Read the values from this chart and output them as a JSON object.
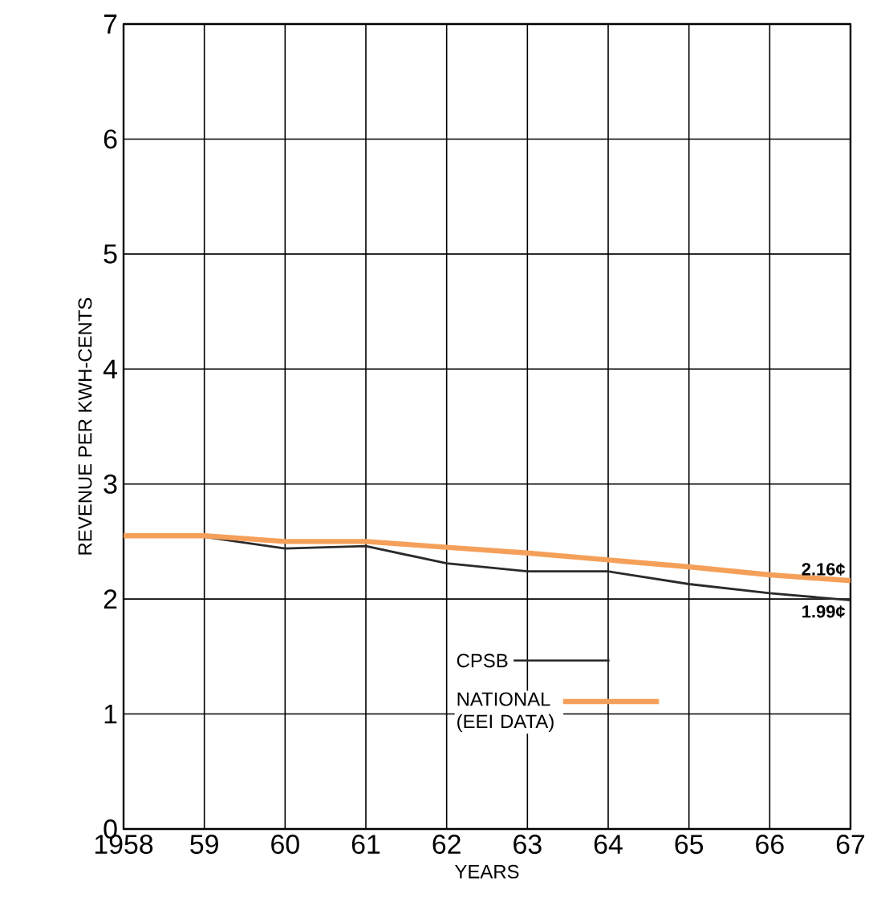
{
  "chart_data": {
    "type": "line",
    "xlabel": "YEARS",
    "ylabel": "REVENUE PER KWH-CENTS",
    "x": [
      1958,
      1959,
      1960,
      1961,
      1962,
      1963,
      1964,
      1965,
      1966,
      1967
    ],
    "series": [
      {
        "name": "CPSB",
        "color": "#2a2a2a",
        "values": [
          2.55,
          2.54,
          2.44,
          2.46,
          2.31,
          2.24,
          2.24,
          2.13,
          2.05,
          1.99
        ],
        "value_labels": [
          null,
          null,
          null,
          null,
          null,
          null,
          null,
          null,
          null,
          "1.99¢"
        ]
      },
      {
        "name": "NATIONAL (EEI DATA)",
        "color": "#f5a05a",
        "values": [
          2.55,
          2.55,
          2.5,
          2.5,
          2.45,
          2.4,
          2.34,
          2.28,
          2.21,
          2.16
        ],
        "value_labels": [
          null,
          null,
          null,
          null,
          null,
          null,
          null,
          null,
          null,
          "2.16¢"
        ]
      }
    ],
    "xlim": [
      1958,
      1967
    ],
    "ylim": [
      0,
      7
    ],
    "xticks": [
      1958,
      {
        "value": 1959,
        "label": "59"
      },
      {
        "value": 1960,
        "label": "60"
      },
      {
        "value": 1961,
        "label": "61"
      },
      {
        "value": 1962,
        "label": "62"
      },
      {
        "value": 1963,
        "label": "63"
      },
      {
        "value": 1964,
        "label": "64"
      },
      {
        "value": 1965,
        "label": "65"
      },
      {
        "value": 1966,
        "label": "66"
      },
      {
        "value": 1967,
        "label": "67"
      }
    ],
    "yticks": [
      0,
      1,
      2,
      3,
      4,
      5,
      6,
      7
    ],
    "grid": true,
    "legend": "bottom",
    "marker": "none",
    "line_style": "solid"
  }
}
